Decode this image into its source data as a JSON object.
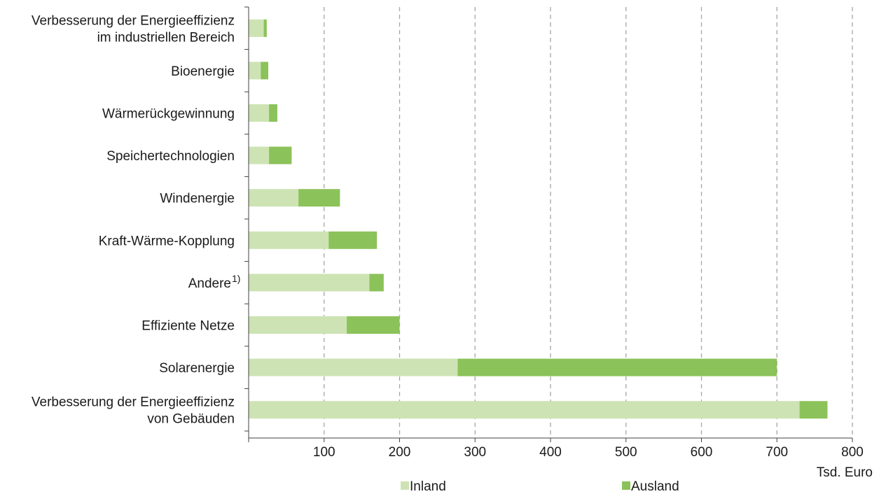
{
  "chart_data": {
    "type": "bar",
    "orientation": "horizontal",
    "stacked": true,
    "categories": [
      [
        "Verbesserung der Energieeffizienz",
        "im industriellen Bereich"
      ],
      [
        "Bioenergie"
      ],
      [
        "Wärmerückgewinnung"
      ],
      [
        "Speichertechnologien"
      ],
      [
        "Windenergie"
      ],
      [
        "Kraft-Wärme-Kopplung"
      ],
      [
        "Andere"
      ],
      [
        "Effiziente Netze"
      ],
      [
        "Solarenergie"
      ],
      [
        "Verbesserung der Energieeffizienz",
        "von Gebäuden"
      ]
    ],
    "category_superscripts": [
      "",
      "",
      "",
      "",
      "",
      "",
      "1)",
      "",
      "",
      ""
    ],
    "series": [
      {
        "name": "Inland",
        "color": "#cde3b4",
        "values": [
          20,
          16,
          27,
          27,
          66,
          106,
          160,
          130,
          277,
          730
        ]
      },
      {
        "name": "Ausland",
        "color": "#8bc25a",
        "values": [
          4,
          10,
          11,
          30,
          55,
          64,
          19,
          70,
          423,
          37
        ]
      }
    ],
    "xlim": [
      0,
      800
    ],
    "xticks": [
      100,
      200,
      300,
      400,
      500,
      600,
      700,
      800
    ],
    "xlabel": "Tsd. Euro",
    "grid": "vertical dashed",
    "legend_position": "bottom"
  }
}
